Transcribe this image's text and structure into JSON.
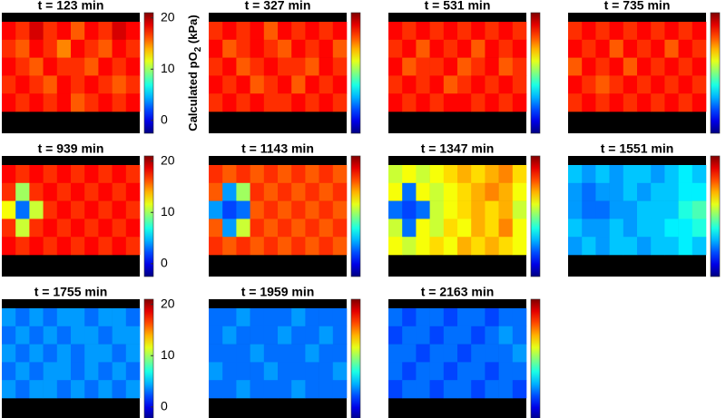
{
  "chart_data": [
    {
      "type": "heatmap",
      "title": "t = 123 min",
      "colormap": "jet",
      "zlim": [
        -2.5,
        21
      ],
      "zticks": [
        0,
        10,
        20
      ],
      "zlabel": {
        "text": "Calculated pO",
        "sub": "2",
        "unit": " (kPa)"
      },
      "values": [
        [
          18,
          17,
          19,
          17,
          18,
          16,
          18,
          17,
          19,
          18
        ],
        [
          17,
          16,
          18,
          17,
          15,
          18,
          17,
          16,
          18,
          17
        ],
        [
          18,
          17,
          16,
          18,
          17,
          17,
          16,
          18,
          17,
          18
        ],
        [
          17,
          18,
          17,
          16,
          18,
          17,
          18,
          17,
          16,
          17
        ],
        [
          18,
          17,
          18,
          17,
          18,
          16,
          17,
          18,
          17,
          18
        ]
      ]
    },
    {
      "type": "heatmap",
      "title": "t = 327 min",
      "colormap": "jet",
      "zlim": [
        -2.5,
        21
      ],
      "values": [
        [
          17,
          18,
          17,
          18,
          16,
          18,
          17,
          18,
          17,
          18
        ],
        [
          18,
          16,
          17,
          18,
          17,
          16,
          18,
          17,
          18,
          16
        ],
        [
          17,
          18,
          16,
          17,
          18,
          17,
          17,
          16,
          18,
          17
        ],
        [
          18,
          17,
          18,
          16,
          17,
          18,
          16,
          18,
          17,
          18
        ],
        [
          17,
          18,
          17,
          18,
          17,
          17,
          18,
          17,
          18,
          17
        ]
      ]
    },
    {
      "type": "heatmap",
      "title": "t = 531 min",
      "colormap": "jet",
      "zlim": [
        -2.5,
        21
      ],
      "values": [
        [
          18,
          17,
          18,
          17,
          18,
          17,
          18,
          17,
          18,
          17
        ],
        [
          17,
          18,
          16,
          18,
          17,
          18,
          16,
          18,
          17,
          18
        ],
        [
          18,
          16,
          17,
          17,
          18,
          16,
          17,
          18,
          16,
          17
        ],
        [
          17,
          18,
          17,
          18,
          16,
          17,
          18,
          17,
          18,
          17
        ],
        [
          18,
          17,
          18,
          17,
          18,
          18,
          17,
          18,
          17,
          18
        ]
      ]
    },
    {
      "type": "heatmap",
      "title": "t = 735 min",
      "colormap": "jet",
      "zlim": [
        -2.5,
        21
      ],
      "values": [
        [
          17,
          18,
          17,
          18,
          17,
          18,
          17,
          18,
          17,
          18
        ],
        [
          18,
          17,
          18,
          16,
          18,
          17,
          18,
          16,
          18,
          17
        ],
        [
          16,
          18,
          17,
          18,
          16,
          18,
          17,
          18,
          17,
          18
        ],
        [
          18,
          17,
          16,
          17,
          18,
          17,
          18,
          17,
          18,
          17
        ],
        [
          17,
          18,
          17,
          18,
          17,
          18,
          17,
          18,
          17,
          18
        ]
      ]
    },
    {
      "type": "heatmap",
      "title": "t = 939 min",
      "colormap": "jet",
      "zlim": [
        -2.5,
        21
      ],
      "zticks": [
        0,
        10,
        20
      ],
      "values": [
        [
          18,
          17,
          18,
          17,
          18,
          17,
          18,
          17,
          18,
          17
        ],
        [
          17,
          10,
          17,
          18,
          17,
          18,
          17,
          18,
          17,
          18
        ],
        [
          12,
          3,
          11,
          17,
          18,
          17,
          18,
          17,
          18,
          17
        ],
        [
          17,
          11,
          17,
          18,
          17,
          18,
          17,
          18,
          17,
          18
        ],
        [
          18,
          17,
          18,
          17,
          18,
          17,
          18,
          17,
          18,
          17
        ]
      ]
    },
    {
      "type": "heatmap",
      "title": "t = 1143 min",
      "colormap": "jet",
      "zlim": [
        -2.5,
        21
      ],
      "values": [
        [
          17,
          16,
          17,
          16,
          17,
          16,
          17,
          16,
          17,
          16
        ],
        [
          16,
          4,
          10,
          17,
          16,
          17,
          16,
          17,
          16,
          17
        ],
        [
          4,
          2,
          3,
          16,
          17,
          16,
          17,
          16,
          17,
          16
        ],
        [
          16,
          4,
          11,
          17,
          16,
          17,
          16,
          17,
          16,
          17
        ],
        [
          17,
          16,
          17,
          16,
          17,
          16,
          17,
          16,
          17,
          16
        ]
      ]
    },
    {
      "type": "heatmap",
      "title": "t = 1347 min",
      "colormap": "jet",
      "zlim": [
        -2.5,
        21
      ],
      "values": [
        [
          11,
          12,
          11,
          12,
          13,
          14,
          13,
          14,
          15,
          13
        ],
        [
          12,
          3,
          12,
          11,
          12,
          13,
          14,
          15,
          14,
          12
        ],
        [
          3,
          2,
          3,
          11,
          12,
          13,
          14,
          13,
          14,
          11
        ],
        [
          11,
          3,
          12,
          11,
          13,
          12,
          14,
          13,
          15,
          12
        ],
        [
          12,
          11,
          12,
          13,
          12,
          14,
          13,
          14,
          13,
          12
        ]
      ]
    },
    {
      "type": "heatmap",
      "title": "t = 1551 min",
      "colormap": "jet",
      "zlim": [
        -2.5,
        21
      ],
      "values": [
        [
          5,
          4,
          5,
          4,
          5,
          5,
          4,
          5,
          6,
          5
        ],
        [
          4,
          3,
          4,
          4,
          5,
          4,
          5,
          5,
          6,
          6
        ],
        [
          4,
          3,
          3,
          4,
          4,
          5,
          5,
          5,
          7,
          8
        ],
        [
          5,
          4,
          4,
          5,
          4,
          5,
          5,
          6,
          6,
          7
        ],
        [
          4,
          5,
          4,
          5,
          5,
          4,
          5,
          5,
          6,
          5
        ]
      ]
    },
    {
      "type": "heatmap",
      "title": "t = 1755 min",
      "colormap": "jet",
      "zlim": [
        -2.5,
        21
      ],
      "zticks": [
        0,
        10,
        20
      ],
      "values": [
        [
          4,
          3,
          4,
          3,
          4,
          4,
          3,
          4,
          4,
          3
        ],
        [
          3,
          4,
          3,
          4,
          3,
          4,
          4,
          3,
          4,
          4
        ],
        [
          4,
          3,
          4,
          3,
          4,
          3,
          4,
          4,
          3,
          4
        ],
        [
          3,
          4,
          3,
          4,
          4,
          3,
          4,
          3,
          4,
          3
        ],
        [
          4,
          3,
          4,
          4,
          3,
          4,
          3,
          4,
          3,
          4
        ]
      ]
    },
    {
      "type": "heatmap",
      "title": "t = 1959 min",
      "colormap": "jet",
      "zlim": [
        -2.5,
        21
      ],
      "values": [
        [
          3,
          3,
          4,
          3,
          3,
          3,
          4,
          3,
          3,
          3
        ],
        [
          3,
          4,
          3,
          3,
          3,
          4,
          3,
          3,
          4,
          3
        ],
        [
          3,
          3,
          3,
          4,
          3,
          3,
          3,
          4,
          3,
          3
        ],
        [
          4,
          3,
          3,
          3,
          4,
          3,
          3,
          3,
          3,
          4
        ],
        [
          3,
          3,
          4,
          3,
          3,
          3,
          4,
          3,
          3,
          3
        ]
      ]
    },
    {
      "type": "heatmap",
      "title": "t = 2163 min",
      "colormap": "jet",
      "zlim": [
        -2.5,
        21
      ],
      "values": [
        [
          3,
          2,
          3,
          3,
          2,
          3,
          3,
          2,
          3,
          3
        ],
        [
          2,
          3,
          3,
          2,
          3,
          3,
          2,
          3,
          4,
          3
        ],
        [
          3,
          3,
          2,
          3,
          3,
          2,
          3,
          3,
          3,
          4
        ],
        [
          3,
          2,
          3,
          3,
          2,
          3,
          3,
          2,
          3,
          3
        ],
        [
          2,
          3,
          3,
          2,
          3,
          3,
          2,
          3,
          3,
          2
        ]
      ]
    }
  ]
}
